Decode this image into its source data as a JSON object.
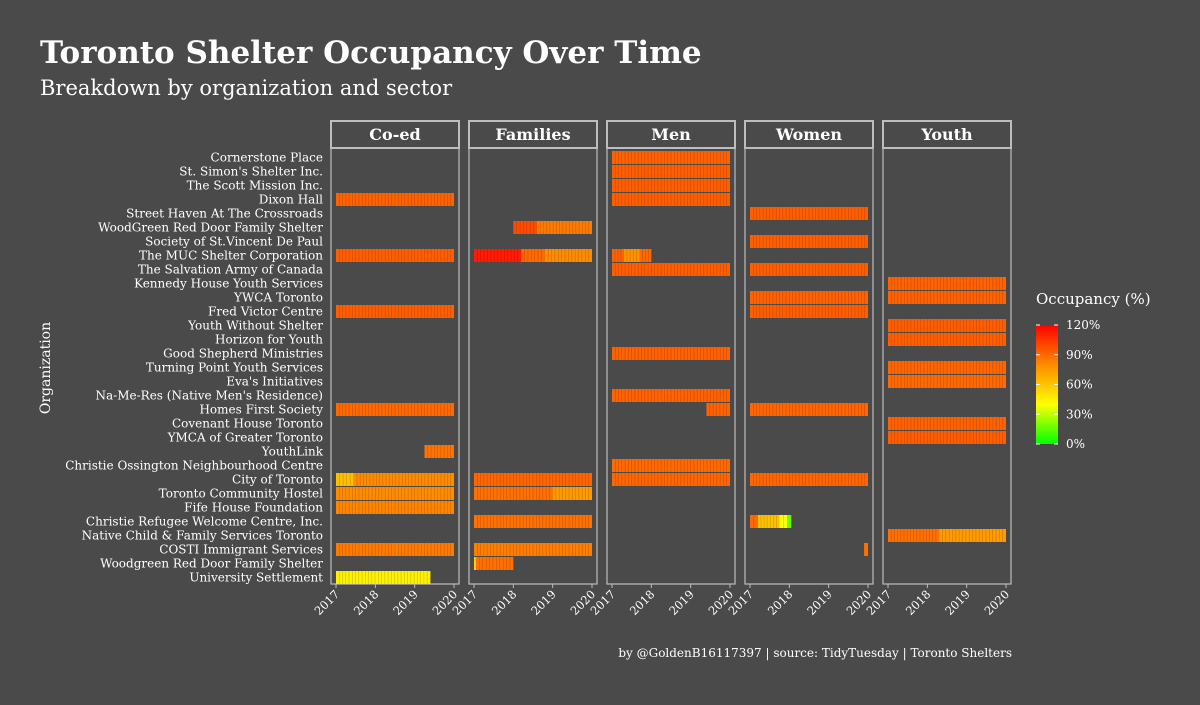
{
  "colors": {
    "background": "#4a4a4a",
    "panel_border": "#bdbdbd",
    "text": "#ffffff",
    "scale": [
      "#00ff00",
      "#ffff00",
      "#ff8c00",
      "#ff0000"
    ]
  },
  "chart_data": {
    "type": "heatmap",
    "title": "Toronto Shelter Occupancy Over Time",
    "subtitle": "Breakdown by organization and sector",
    "caption": "by @GoldenB16117397 | source: TidyTuesday | Toronto Shelters",
    "ylabel": "Organization",
    "legend": {
      "title": "Occupancy (%)",
      "ticks": [
        "0%",
        "30%",
        "60%",
        "90%",
        "120%"
      ],
      "range": [
        0,
        120
      ],
      "placement": "right"
    },
    "x_range": [
      2017,
      2020
    ],
    "x_ticks": [
      "2017",
      "2018",
      "2019",
      "2020"
    ],
    "sectors": [
      "Co-ed",
      "Families",
      "Men",
      "Women",
      "Youth"
    ],
    "organizations": [
      "Cornerstone Place",
      "St. Simon's Shelter Inc.",
      "The Scott Mission Inc.",
      "Dixon Hall",
      "Street Haven At The Crossroads",
      "WoodGreen Red Door Family Shelter",
      "Society of St.Vincent De Paul",
      "The MUC Shelter Corporation",
      "The Salvation Army of Canada",
      "Kennedy House Youth Services",
      "YWCA Toronto",
      "Fred Victor Centre",
      "Youth Without Shelter",
      "Horizon for Youth",
      "Good Shepherd Ministries",
      "Turning Point Youth Services",
      "Eva's Initiatives",
      "Na-Me-Res (Native Men's Residence)",
      "Homes First Society",
      "Covenant House Toronto",
      "YMCA of Greater Toronto",
      "YouthLink",
      "Christie Ossington Neighbourhood Centre",
      "City of Toronto",
      "Toronto Community Hostel",
      "Fife House Foundation",
      "Christie Refugee Welcome Centre, Inc.",
      "Native Child & Family Services Toronto",
      "COSTI Immigrant Services",
      "Woodgreen Red Door Family Shelter",
      "University Settlement"
    ],
    "segments": [
      {
        "org": "Cornerstone Place",
        "sector": "Men",
        "start": 2017.0,
        "end": 2020.0,
        "occupancy": 92
      },
      {
        "org": "St. Simon's Shelter Inc.",
        "sector": "Men",
        "start": 2017.0,
        "end": 2020.0,
        "occupancy": 93
      },
      {
        "org": "The Scott Mission Inc.",
        "sector": "Men",
        "start": 2017.0,
        "end": 2020.0,
        "occupancy": 93
      },
      {
        "org": "Dixon Hall",
        "sector": "Co-ed",
        "start": 2017.0,
        "end": 2020.0,
        "occupancy": 92
      },
      {
        "org": "Dixon Hall",
        "sector": "Men",
        "start": 2017.0,
        "end": 2020.0,
        "occupancy": 93
      },
      {
        "org": "Street Haven At The Crossroads",
        "sector": "Women",
        "start": 2017.0,
        "end": 2020.0,
        "occupancy": 93
      },
      {
        "org": "WoodGreen Red Door Family Shelter",
        "sector": "Families",
        "start": 2018.0,
        "end": 2018.6,
        "occupancy": 98
      },
      {
        "org": "WoodGreen Red Door Family Shelter",
        "sector": "Families",
        "start": 2018.6,
        "end": 2020.0,
        "occupancy": 85
      },
      {
        "org": "Society of St.Vincent De Paul",
        "sector": "Women",
        "start": 2017.0,
        "end": 2020.0,
        "occupancy": 93
      },
      {
        "org": "The MUC Shelter Corporation",
        "sector": "Co-ed",
        "start": 2017.0,
        "end": 2020.0,
        "occupancy": 93
      },
      {
        "org": "The MUC Shelter Corporation",
        "sector": "Families",
        "start": 2017.0,
        "end": 2018.2,
        "occupancy": 112
      },
      {
        "org": "The MUC Shelter Corporation",
        "sector": "Families",
        "start": 2018.2,
        "end": 2018.8,
        "occupancy": 90
      },
      {
        "org": "The MUC Shelter Corporation",
        "sector": "Families",
        "start": 2018.8,
        "end": 2020.0,
        "occupancy": 80
      },
      {
        "org": "The MUC Shelter Corporation",
        "sector": "Men",
        "start": 2017.0,
        "end": 2017.3,
        "occupancy": 92
      },
      {
        "org": "The MUC Shelter Corporation",
        "sector": "Men",
        "start": 2017.3,
        "end": 2017.7,
        "occupancy": 78
      },
      {
        "org": "The MUC Shelter Corporation",
        "sector": "Men",
        "start": 2017.7,
        "end": 2018.0,
        "occupancy": 90
      },
      {
        "org": "The Salvation Army of Canada",
        "sector": "Men",
        "start": 2017.0,
        "end": 2020.0,
        "occupancy": 93
      },
      {
        "org": "The Salvation Army of Canada",
        "sector": "Women",
        "start": 2017.0,
        "end": 2020.0,
        "occupancy": 93
      },
      {
        "org": "Kennedy House Youth Services",
        "sector": "Youth",
        "start": 2017.0,
        "end": 2020.0,
        "occupancy": 92
      },
      {
        "org": "YWCA Toronto",
        "sector": "Women",
        "start": 2017.0,
        "end": 2020.0,
        "occupancy": 92
      },
      {
        "org": "YWCA Toronto",
        "sector": "Youth",
        "start": 2017.0,
        "end": 2020.0,
        "occupancy": 92
      },
      {
        "org": "Fred Victor Centre",
        "sector": "Co-ed",
        "start": 2017.0,
        "end": 2020.0,
        "occupancy": 93
      },
      {
        "org": "Fred Victor Centre",
        "sector": "Women",
        "start": 2017.0,
        "end": 2020.0,
        "occupancy": 93
      },
      {
        "org": "Youth Without Shelter",
        "sector": "Youth",
        "start": 2017.0,
        "end": 2020.0,
        "occupancy": 93
      },
      {
        "org": "Horizon for Youth",
        "sector": "Youth",
        "start": 2017.0,
        "end": 2020.0,
        "occupancy": 93
      },
      {
        "org": "Good Shepherd Ministries",
        "sector": "Men",
        "start": 2017.0,
        "end": 2020.0,
        "occupancy": 92
      },
      {
        "org": "Turning Point Youth Services",
        "sector": "Youth",
        "start": 2017.0,
        "end": 2020.0,
        "occupancy": 91
      },
      {
        "org": "Eva's Initiatives",
        "sector": "Youth",
        "start": 2017.0,
        "end": 2020.0,
        "occupancy": 90
      },
      {
        "org": "Na-Me-Res (Native Men's Residence)",
        "sector": "Men",
        "start": 2017.0,
        "end": 2020.0,
        "occupancy": 92
      },
      {
        "org": "Homes First Society",
        "sector": "Co-ed",
        "start": 2017.0,
        "end": 2020.0,
        "occupancy": 90
      },
      {
        "org": "Homes First Society",
        "sector": "Men",
        "start": 2019.4,
        "end": 2020.0,
        "occupancy": 92
      },
      {
        "org": "Homes First Society",
        "sector": "Women",
        "start": 2017.0,
        "end": 2020.0,
        "occupancy": 91
      },
      {
        "org": "Covenant House Toronto",
        "sector": "Youth",
        "start": 2017.0,
        "end": 2020.0,
        "occupancy": 92
      },
      {
        "org": "YMCA of Greater Toronto",
        "sector": "Youth",
        "start": 2017.0,
        "end": 2020.0,
        "occupancy": 93
      },
      {
        "org": "YouthLink",
        "sector": "Co-ed",
        "start": 2019.25,
        "end": 2020.0,
        "occupancy": 87
      },
      {
        "org": "Christie Ossington Neighbourhood Centre",
        "sector": "Men",
        "start": 2017.0,
        "end": 2020.0,
        "occupancy": 90
      },
      {
        "org": "City of Toronto",
        "sector": "Co-ed",
        "start": 2017.0,
        "end": 2017.45,
        "occupancy": 62
      },
      {
        "org": "City of Toronto",
        "sector": "Co-ed",
        "start": 2017.45,
        "end": 2020.0,
        "occupancy": 80
      },
      {
        "org": "City of Toronto",
        "sector": "Families",
        "start": 2017.0,
        "end": 2020.0,
        "occupancy": 91
      },
      {
        "org": "City of Toronto",
        "sector": "Men",
        "start": 2017.0,
        "end": 2020.0,
        "occupancy": 91
      },
      {
        "org": "City of Toronto",
        "sector": "Women",
        "start": 2017.0,
        "end": 2020.0,
        "occupancy": 91
      },
      {
        "org": "Toronto Community Hostel",
        "sector": "Co-ed",
        "start": 2017.0,
        "end": 2020.0,
        "occupancy": 80
      },
      {
        "org": "Toronto Community Hostel",
        "sector": "Families",
        "start": 2017.0,
        "end": 2019.0,
        "occupancy": 88
      },
      {
        "org": "Toronto Community Hostel",
        "sector": "Families",
        "start": 2019.0,
        "end": 2020.0,
        "occupancy": 75
      },
      {
        "org": "Fife House Foundation",
        "sector": "Co-ed",
        "start": 2017.0,
        "end": 2020.0,
        "occupancy": 82
      },
      {
        "org": "Christie Refugee Welcome Centre, Inc.",
        "sector": "Families",
        "start": 2017.0,
        "end": 2020.0,
        "occupancy": 88
      },
      {
        "org": "Christie Refugee Welcome Centre, Inc.",
        "sector": "Women",
        "start": 2017.0,
        "end": 2017.2,
        "occupancy": 90
      },
      {
        "org": "Christie Refugee Welcome Centre, Inc.",
        "sector": "Women",
        "start": 2017.2,
        "end": 2017.75,
        "occupancy": 62
      },
      {
        "org": "Christie Refugee Welcome Centre, Inc.",
        "sector": "Women",
        "start": 2017.75,
        "end": 2017.95,
        "occupancy": 40
      },
      {
        "org": "Christie Refugee Welcome Centre, Inc.",
        "sector": "Women",
        "start": 2017.95,
        "end": 2018.05,
        "occupancy": 15
      },
      {
        "org": "Native Child & Family Services Toronto",
        "sector": "Youth",
        "start": 2017.0,
        "end": 2018.3,
        "occupancy": 88
      },
      {
        "org": "Native Child & Family Services Toronto",
        "sector": "Youth",
        "start": 2018.3,
        "end": 2020.0,
        "occupancy": 75
      },
      {
        "org": "COSTI Immigrant Services",
        "sector": "Co-ed",
        "start": 2017.0,
        "end": 2020.0,
        "occupancy": 85
      },
      {
        "org": "COSTI Immigrant Services",
        "sector": "Families",
        "start": 2017.0,
        "end": 2020.0,
        "occupancy": 84
      },
      {
        "org": "COSTI Immigrant Services",
        "sector": "Women",
        "start": 2019.9,
        "end": 2020.0,
        "occupancy": 88
      },
      {
        "org": "Woodgreen Red Door Family Shelter",
        "sector": "Families",
        "start": 2017.0,
        "end": 2017.05,
        "occupancy": 55
      },
      {
        "org": "Woodgreen Red Door Family Shelter",
        "sector": "Families",
        "start": 2017.05,
        "end": 2018.0,
        "occupancy": 88
      },
      {
        "org": "University Settlement",
        "sector": "Co-ed",
        "start": 2017.0,
        "end": 2019.4,
        "occupancy": 45
      }
    ]
  }
}
